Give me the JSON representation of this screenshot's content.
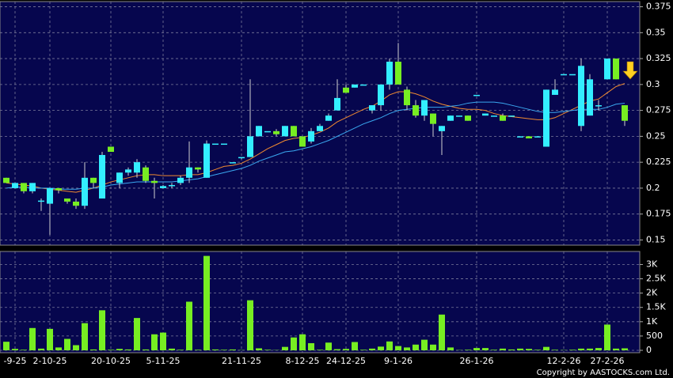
{
  "chart_data": {
    "type": "candlestick",
    "categories": [
      null,
      "-9-25",
      null,
      null,
      null,
      "2-10-25",
      null,
      null,
      null,
      null,
      null,
      null,
      "20-10-25",
      null,
      null,
      null,
      null,
      null,
      "5-11-25",
      null,
      null,
      null,
      null,
      null,
      null,
      null,
      null,
      "21-11-25",
      null,
      null,
      null,
      null,
      null,
      null,
      "8-12-25",
      null,
      null,
      null,
      null,
      "24-12-25",
      null,
      null,
      null,
      null,
      null,
      "9-1-26",
      null,
      null,
      null,
      null,
      null,
      null,
      null,
      null,
      "26-1-26",
      null,
      null,
      null,
      null,
      null,
      null,
      null,
      null,
      null,
      "12-2-26",
      null,
      null,
      null,
      null,
      "27-2-26",
      null,
      null
    ],
    "open": [
      0.21,
      0.2,
      0.205,
      0.197,
      0.188,
      0.185,
      0.2,
      0.19,
      0.187,
      0.183,
      0.21,
      0.19,
      0.24,
      0.205,
      0.215,
      0.215,
      0.22,
      0.207,
      0.2,
      0.202,
      0.205,
      0.21,
      0.22,
      0.21,
      0.243,
      0.243,
      0.225,
      0.23,
      0.23,
      0.25,
      0.255,
      0.255,
      0.25,
      0.26,
      0.25,
      0.245,
      0.255,
      0.265,
      0.275,
      0.297,
      0.297,
      0.3,
      0.275,
      0.28,
      0.3,
      0.322,
      0.295,
      0.28,
      0.27,
      0.272,
      0.255,
      0.265,
      0.27,
      0.27,
      0.29,
      0.27,
      0.27,
      0.27,
      0.27,
      0.25,
      0.25,
      0.25,
      0.24,
      0.29,
      0.31,
      0.31,
      0.26,
      0.27,
      0.28,
      0.305,
      0.325,
      0.28
    ],
    "high": [
      0.21,
      0.205,
      0.205,
      0.205,
      0.19,
      0.2,
      0.2,
      0.19,
      0.19,
      0.225,
      0.21,
      0.235,
      0.24,
      0.215,
      0.22,
      0.228,
      0.222,
      0.21,
      0.203,
      0.205,
      0.212,
      0.245,
      0.22,
      0.246,
      0.243,
      0.243,
      0.225,
      0.23,
      0.305,
      0.26,
      0.255,
      0.257,
      0.26,
      0.26,
      0.25,
      0.258,
      0.262,
      0.272,
      0.305,
      0.3,
      0.3,
      0.3,
      0.28,
      0.3,
      0.325,
      0.34,
      0.298,
      0.285,
      0.285,
      0.272,
      0.26,
      0.27,
      0.27,
      0.27,
      0.29,
      0.272,
      0.27,
      0.272,
      0.27,
      0.25,
      0.25,
      0.25,
      0.295,
      0.305,
      0.31,
      0.31,
      0.325,
      0.31,
      0.285,
      0.325,
      0.325,
      0.28
    ],
    "low": [
      0.205,
      0.2,
      0.195,
      0.195,
      0.178,
      0.155,
      0.195,
      0.185,
      0.18,
      0.18,
      0.2,
      0.19,
      0.235,
      0.2,
      0.212,
      0.21,
      0.205,
      0.19,
      0.2,
      0.2,
      0.203,
      0.205,
      0.215,
      0.21,
      0.243,
      0.243,
      0.225,
      0.228,
      0.23,
      0.25,
      0.255,
      0.25,
      0.25,
      0.25,
      0.24,
      0.243,
      0.255,
      0.265,
      0.275,
      0.292,
      0.297,
      0.3,
      0.272,
      0.275,
      0.295,
      0.3,
      0.275,
      0.268,
      0.265,
      0.25,
      0.232,
      0.265,
      0.27,
      0.265,
      0.29,
      0.27,
      0.27,
      0.265,
      0.27,
      0.25,
      0.248,
      0.25,
      0.24,
      0.29,
      0.31,
      0.31,
      0.255,
      0.27,
      0.275,
      0.305,
      0.305,
      0.26
    ],
    "close": [
      0.205,
      0.205,
      0.197,
      0.205,
      0.188,
      0.2,
      0.198,
      0.187,
      0.183,
      0.21,
      0.205,
      0.232,
      0.235,
      0.215,
      0.218,
      0.225,
      0.207,
      0.205,
      0.202,
      0.203,
      0.21,
      0.22,
      0.218,
      0.243,
      0.243,
      0.243,
      0.225,
      0.23,
      0.25,
      0.26,
      0.255,
      0.252,
      0.26,
      0.25,
      0.24,
      0.255,
      0.26,
      0.27,
      0.287,
      0.292,
      0.3,
      0.3,
      0.28,
      0.3,
      0.322,
      0.3,
      0.28,
      0.27,
      0.285,
      0.262,
      0.26,
      0.27,
      0.27,
      0.265,
      0.29,
      0.272,
      0.27,
      0.265,
      0.27,
      0.25,
      0.248,
      0.25,
      0.295,
      0.295,
      0.31,
      0.31,
      0.318,
      0.305,
      0.28,
      0.325,
      0.305,
      0.265
    ],
    "volume": [
      300,
      50,
      20,
      780,
      60,
      750,
      100,
      400,
      180,
      950,
      30,
      1400,
      20,
      50,
      30,
      1130,
      30,
      560,
      620,
      60,
      20,
      1700,
      20,
      3300,
      30,
      20,
      30,
      10,
      1750,
      70,
      20,
      10,
      120,
      450,
      560,
      250,
      20,
      270,
      40,
      50,
      290,
      20,
      60,
      130,
      310,
      150,
      100,
      200,
      370,
      200,
      1250,
      100,
      10,
      20,
      80,
      80,
      20,
      60,
      30,
      60,
      50,
      20,
      120,
      20,
      10,
      20,
      60,
      60,
      80,
      900,
      60,
      70
    ],
    "up_color": "#33eeff",
    "down_color": "#77ee22",
    "volume_color": "#77ee22",
    "ma_lines": [
      {
        "color": "#f08a30",
        "values": [
          0.205,
          0.204,
          0.203,
          0.202,
          0.2,
          0.199,
          0.198,
          0.197,
          0.196,
          0.198,
          0.2,
          0.203,
          0.206,
          0.208,
          0.21,
          0.212,
          0.213,
          0.213,
          0.212,
          0.212,
          0.212,
          0.213,
          0.213,
          0.215,
          0.218,
          0.221,
          0.222,
          0.224,
          0.228,
          0.233,
          0.238,
          0.242,
          0.246,
          0.248,
          0.249,
          0.251,
          0.254,
          0.258,
          0.264,
          0.268,
          0.272,
          0.276,
          0.279,
          0.284,
          0.29,
          0.293,
          0.293,
          0.291,
          0.288,
          0.284,
          0.281,
          0.279,
          0.277,
          0.276,
          0.276,
          0.275,
          0.272,
          0.27,
          0.269,
          0.268,
          0.267,
          0.266,
          0.266,
          0.268,
          0.272,
          0.276,
          0.28,
          0.284,
          0.286,
          0.292,
          0.298,
          0.301
        ]
      },
      {
        "color": "#3aa8f0",
        "values": [
          0.2,
          0.201,
          0.201,
          0.2,
          0.2,
          0.2,
          0.199,
          0.199,
          0.199,
          0.2,
          0.2,
          0.201,
          0.203,
          0.204,
          0.205,
          0.206,
          0.206,
          0.206,
          0.206,
          0.206,
          0.207,
          0.208,
          0.209,
          0.211,
          0.213,
          0.215,
          0.217,
          0.219,
          0.222,
          0.226,
          0.229,
          0.232,
          0.235,
          0.236,
          0.238,
          0.24,
          0.243,
          0.246,
          0.25,
          0.254,
          0.258,
          0.262,
          0.265,
          0.268,
          0.272,
          0.275,
          0.276,
          0.277,
          0.278,
          0.278,
          0.278,
          0.279,
          0.28,
          0.282,
          0.283,
          0.283,
          0.283,
          0.282,
          0.28,
          0.278,
          0.276,
          0.274,
          0.273,
          0.273,
          0.274,
          0.275,
          0.276,
          0.276,
          0.276,
          0.278,
          0.281,
          0.282
        ]
      }
    ],
    "ylim": [
      0.145,
      0.38
    ],
    "yticks": [
      0.15,
      0.175,
      0.2,
      0.225,
      0.25,
      0.275,
      0.3,
      0.325,
      0.35,
      0.375
    ],
    "volume_ylim": [
      0,
      3400
    ],
    "volume_ticks": [
      0,
      500,
      {
        "value": 1000,
        "label": "1K"
      },
      {
        "value": 1500,
        "label": "1.5K"
      },
      {
        "value": 2000,
        "label": "2K"
      },
      {
        "value": 2500,
        "label": "2.5K"
      },
      {
        "value": 3000,
        "label": "3K"
      }
    ],
    "grid": true,
    "copyright": "Copyright by AASTOCKS.com Ltd."
  }
}
